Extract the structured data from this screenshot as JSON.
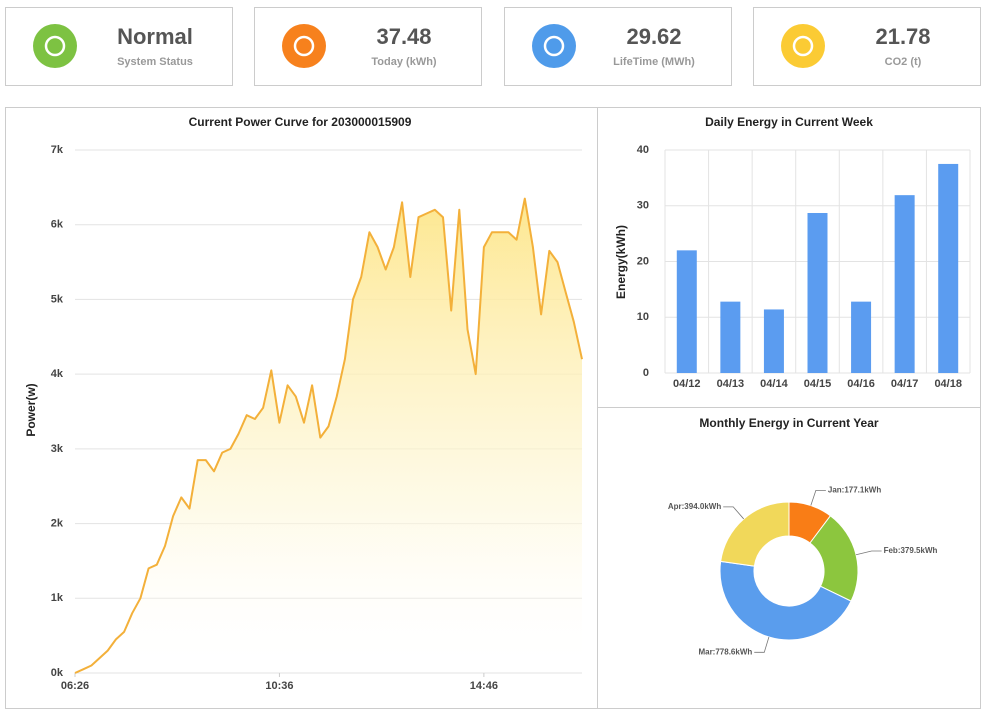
{
  "cards": [
    {
      "value": "Normal",
      "label": "System Status",
      "color": "#7dc242"
    },
    {
      "value": 37.48,
      "label": "Today (kWh)",
      "color": "#f7811d"
    },
    {
      "value": 29.62,
      "label": "LifeTime (MWh)",
      "color": "#4f9bea"
    },
    {
      "value": 21.78,
      "label": "CO2 (t)",
      "color": "#fbcb34"
    }
  ],
  "chart_data": [
    {
      "type": "line",
      "title": "Current Power Curve for 203000015909",
      "y_label": "Power(w)",
      "color": "#f3b03a",
      "x": [
        386,
        396,
        406,
        416,
        426,
        436,
        446,
        456,
        466,
        476,
        486,
        496,
        506,
        516,
        526,
        536,
        546,
        556,
        566,
        576,
        586,
        596,
        606,
        616,
        626,
        636,
        646,
        656,
        666,
        676,
        686,
        696,
        706,
        716,
        726,
        736,
        746,
        756,
        766,
        776,
        786,
        796,
        806,
        816,
        826,
        836,
        846,
        856,
        866,
        876,
        886,
        896,
        906,
        916,
        926,
        936,
        946,
        956,
        966,
        976,
        986,
        996,
        1006
      ],
      "values": [
        0,
        50,
        100,
        200,
        300,
        450,
        550,
        800,
        1000,
        1400,
        1450,
        1700,
        2100,
        2350,
        2200,
        2850,
        2850,
        2700,
        2950,
        3000,
        3200,
        3450,
        3400,
        3550,
        4050,
        3350,
        3850,
        3700,
        3350,
        3850,
        3150,
        3300,
        3700,
        4200,
        5000,
        5300,
        5900,
        5700,
        5400,
        5700,
        6300,
        5300,
        6100,
        6150,
        6200,
        6100,
        4850,
        6200,
        4600,
        4000,
        5700,
        5900,
        5900,
        5900,
        5800,
        6350,
        5700,
        4800,
        5650,
        5500,
        5100,
        4700,
        4200
      ],
      "xlim": [
        386,
        1006
      ],
      "xticks": [
        {
          "value": 386,
          "label": "06:26"
        },
        {
          "value": 636,
          "label": "10:36"
        },
        {
          "value": 886,
          "label": "14:46"
        }
      ],
      "ylim": [
        0,
        7000
      ],
      "yticks": [
        {
          "value": 0,
          "label": "0k"
        },
        {
          "value": 1000,
          "label": "1k"
        },
        {
          "value": 2000,
          "label": "2k"
        },
        {
          "value": 3000,
          "label": "3k"
        },
        {
          "value": 4000,
          "label": "4k"
        },
        {
          "value": 5000,
          "label": "5k"
        },
        {
          "value": 6000,
          "label": "6k"
        },
        {
          "value": 7000,
          "label": "7k"
        }
      ],
      "grid": true
    },
    {
      "type": "bar",
      "title": "Daily Energy in Current Week",
      "y_label": "Energy(kWh)",
      "color": "#5b9cf0",
      "categories": [
        "04/12",
        "04/13",
        "04/14",
        "04/15",
        "04/16",
        "04/17",
        "04/18"
      ],
      "values": [
        22,
        12.8,
        11.4,
        28.7,
        12.8,
        31.9,
        37.5
      ],
      "ylim": [
        0,
        40
      ],
      "yticks": [
        0,
        10,
        20,
        30,
        40
      ],
      "grid": true
    },
    {
      "type": "pie",
      "title": "Monthly Energy in Current Year",
      "values": [
        177.1,
        379.5,
        778.6,
        394.0
      ],
      "value_labels": [
        "Jan:177.1kWh",
        "Feb:379.5kWh",
        "Mar:778.6kWh",
        "Apr:394.0kWh"
      ],
      "colors": [
        "#f97d16",
        "#8cc63e",
        "#5a9ded",
        "#f1d85a"
      ]
    }
  ]
}
